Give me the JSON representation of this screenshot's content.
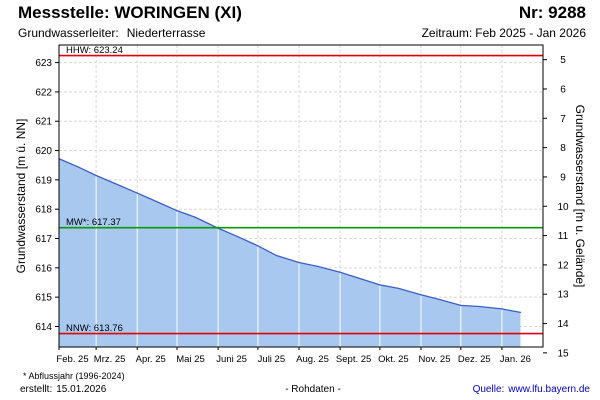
{
  "header": {
    "title": "Messstelle: WORINGEN (XI)",
    "number": "Nr: 9288",
    "aquifer_label": "Grundwasserleiter:",
    "aquifer_value": "Niederterrasse",
    "period_label": "Zeitraum:",
    "period_value": "Feb 2025 - Jan 2026"
  },
  "footer": {
    "footnote": "* Abflussjahr (1996-2024)",
    "created_label": "erstellt:",
    "created_value": "15.01.2026",
    "raw_data_note": "- Rohdaten -",
    "source_label": "Quelle:",
    "source_value": "www.lfu.bayern.de"
  },
  "colors": {
    "fill": "#a8c8f0",
    "line": "#3a5fcd",
    "hhw": "#e00000",
    "nnw": "#e00000",
    "mw": "#009900",
    "grid": "#d8d8d8",
    "month_grid": "#ffffff",
    "source_link": "#0000cc"
  },
  "chart_data": {
    "type": "area",
    "ylabel_left": "Grundwasserstand [m ü. NN]",
    "ylabel_right": "Grundwasserstand [m u. Gelände]",
    "ylim": [
      613.3,
      623.6
    ],
    "yticks_left": [
      614,
      615,
      616,
      617,
      618,
      619,
      620,
      621,
      622,
      623
    ],
    "yticks_right": [
      "5",
      "6",
      "7",
      "8",
      "9",
      "10",
      "11",
      "12",
      "13",
      "14",
      "15"
    ],
    "right_axis_offset": 628.1,
    "xlim": [
      "2025-02-01",
      "2026-01-31"
    ],
    "month_ticks": [
      {
        "label": "Feb. 25",
        "date": "2025-02-01"
      },
      {
        "label": "Mrz. 25",
        "date": "2025-03-01"
      },
      {
        "label": "Apr. 25",
        "date": "2025-04-01"
      },
      {
        "label": "Mai 25",
        "date": "2025-05-01"
      },
      {
        "label": "Juni 25",
        "date": "2025-06-01"
      },
      {
        "label": "Juli 25",
        "date": "2025-07-01"
      },
      {
        "label": "Aug. 25",
        "date": "2025-08-01"
      },
      {
        "label": "Sept. 25",
        "date": "2025-09-01"
      },
      {
        "label": "Okt. 25",
        "date": "2025-10-01"
      },
      {
        "label": "Nov. 25",
        "date": "2025-11-01"
      },
      {
        "label": "Dez. 25",
        "date": "2025-12-01"
      },
      {
        "label": "Jan. 26",
        "date": "2026-01-01"
      }
    ],
    "reference_lines": [
      {
        "key": "hhw",
        "label": "HHW: 623.24",
        "value": 623.24
      },
      {
        "key": "mw",
        "label": "MW*: 617.37",
        "value": 617.37
      },
      {
        "key": "nnw",
        "label": "NNW: 613.76",
        "value": 613.76
      }
    ],
    "series": [
      {
        "x": [
          "2025-02-01",
          "2025-02-15",
          "2025-03-01",
          "2025-03-15",
          "2025-04-01",
          "2025-04-15",
          "2025-05-01",
          "2025-05-15",
          "2025-06-01",
          "2025-06-15",
          "2025-07-01",
          "2025-07-15",
          "2025-08-01",
          "2025-08-15",
          "2025-09-01",
          "2025-09-15",
          "2025-10-01",
          "2025-10-15",
          "2025-11-01",
          "2025-11-15",
          "2025-12-01",
          "2025-12-15",
          "2026-01-01",
          "2026-01-15"
        ],
        "values": [
          619.72,
          619.45,
          619.15,
          618.88,
          618.55,
          618.27,
          617.95,
          617.72,
          617.35,
          617.08,
          616.75,
          616.42,
          616.18,
          616.05,
          615.85,
          615.65,
          615.42,
          615.3,
          615.08,
          614.92,
          614.72,
          614.68,
          614.6,
          614.48
        ]
      }
    ]
  }
}
